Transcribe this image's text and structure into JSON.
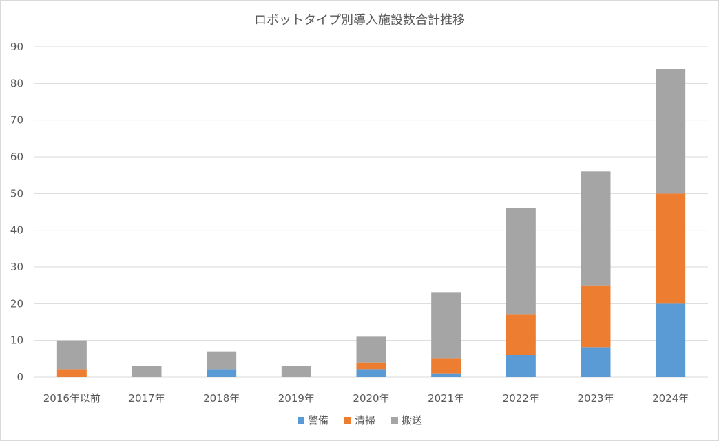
{
  "chart_data": {
    "type": "bar",
    "stacked": true,
    "title": "ロボットタイプ別導入施設数合計推移",
    "xlabel": "",
    "ylabel": "",
    "categories": [
      "2016年以前",
      "2017年",
      "2018年",
      "2019年",
      "2020年",
      "2021年",
      "2022年",
      "2023年",
      "2024年"
    ],
    "series": [
      {
        "name": "警備",
        "color": "#5b9bd5",
        "values": [
          0,
          0,
          2,
          0,
          2,
          1,
          6,
          8,
          20
        ]
      },
      {
        "name": "清掃",
        "color": "#ed7d31",
        "values": [
          2,
          0,
          0,
          0,
          2,
          4,
          11,
          17,
          30
        ]
      },
      {
        "name": "搬送",
        "color": "#a5a5a5",
        "values": [
          8,
          3,
          5,
          3,
          7,
          18,
          29,
          31,
          34
        ]
      }
    ],
    "ylim": [
      0,
      90
    ],
    "yticks": [
      0,
      10,
      20,
      30,
      40,
      50,
      60,
      70,
      80,
      90
    ],
    "grid": true,
    "legend_position": "bottom"
  }
}
